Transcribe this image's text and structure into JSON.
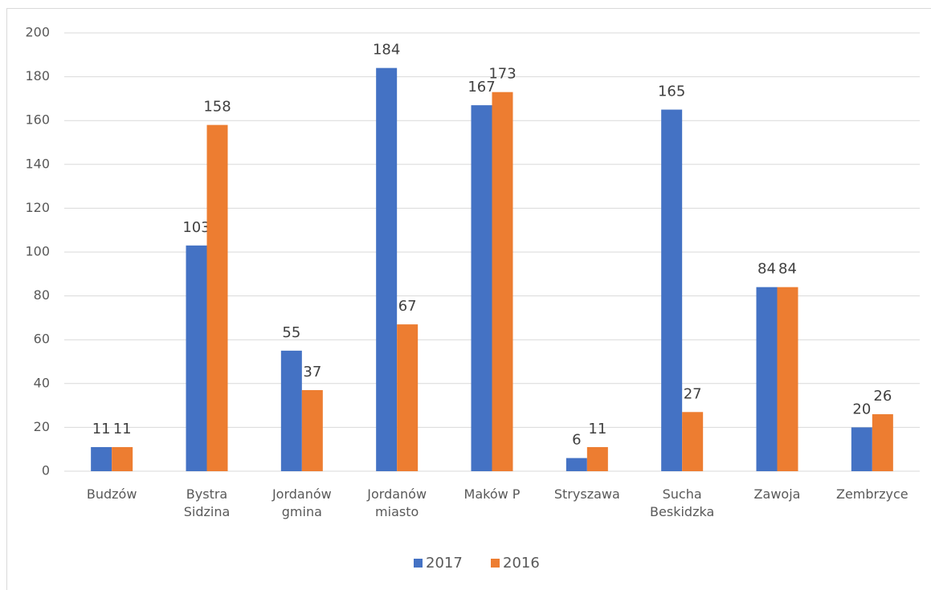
{
  "chart_data": {
    "type": "bar",
    "categories": [
      "Budzów",
      "Bystra Sidzina",
      "Jordanów gmina",
      "Jordanów miasto",
      "Maków P",
      "Stryszawa",
      "Sucha Beskidzka",
      "Zawoja",
      "Zembrzyce"
    ],
    "series": [
      {
        "name": "2017",
        "color": "#4472c4",
        "values": [
          11,
          103,
          55,
          184,
          167,
          6,
          165,
          84,
          20
        ]
      },
      {
        "name": "2016",
        "color": "#ed7d31",
        "values": [
          11,
          158,
          37,
          67,
          173,
          11,
          27,
          84,
          26
        ]
      }
    ],
    "ylim": [
      0,
      200
    ],
    "yticks": [
      0,
      20,
      40,
      60,
      80,
      100,
      120,
      140,
      160,
      180,
      200
    ],
    "grid": true,
    "legend": "bottom"
  }
}
